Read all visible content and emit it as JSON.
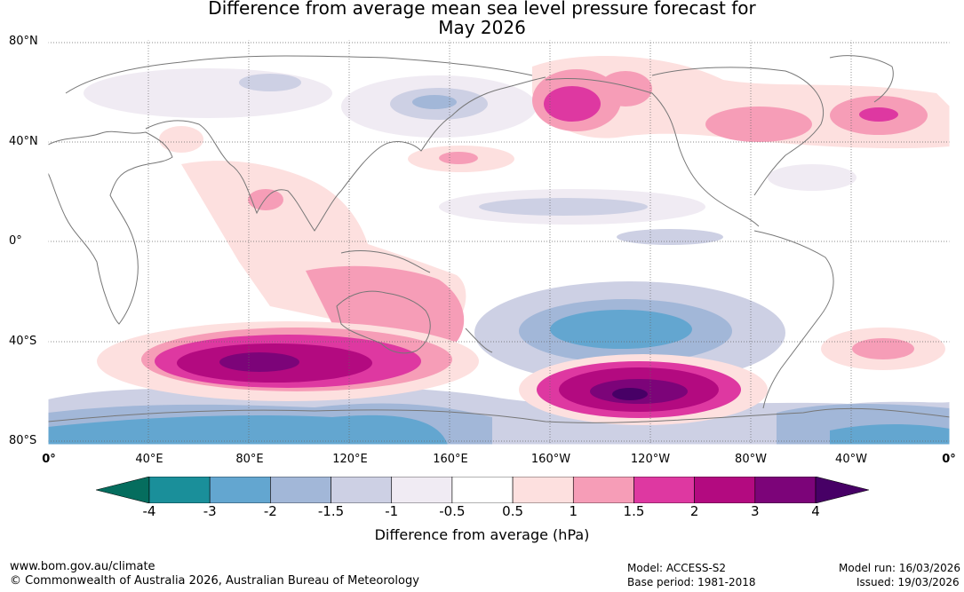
{
  "title_line1": "Difference from average mean sea level pressure forecast for",
  "title_line2": "May 2026",
  "lat_labels": [
    "80°N",
    "40°N",
    "0°",
    "40°S",
    "80°S"
  ],
  "lon_labels": [
    "0°",
    "40°E",
    "80°E",
    "120°E",
    "160°E",
    "160°W",
    "120°W",
    "80°W",
    "40°W",
    "0°"
  ],
  "colorbar": {
    "label": "Difference from average (hPa)",
    "ticks": [
      "-4",
      "-3",
      "-2",
      "-1.5",
      "-1",
      "-0.5",
      "0.5",
      "1",
      "1.5",
      "2",
      "3",
      "4"
    ],
    "colors": [
      "#1a8f9a",
      "#63a6d0",
      "#a2b7d8",
      "#cdd0e4",
      "#f0ebf3",
      "#ffffff",
      "#fde0df",
      "#f69db7",
      "#de38a1",
      "#b30a80",
      "#7c0479"
    ],
    "extend_low": "#056d5e",
    "extend_high": "#470066"
  },
  "footer": {
    "url": "www.bom.gov.au/climate",
    "copyright": "© Commonwealth of Australia 2026, Australian Bureau of Meteorology",
    "model": "Model: ACCESS-S2",
    "base_period": "Base period: 1981-2018",
    "model_run": "Model run: 16/03/2026",
    "issued": "Issued: 19/03/2026"
  }
}
